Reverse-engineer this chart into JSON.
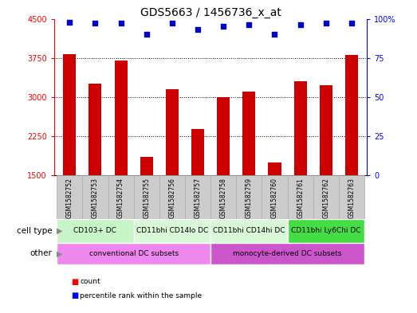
{
  "title": "GDS5663 / 1456736_x_at",
  "samples": [
    "GSM1582752",
    "GSM1582753",
    "GSM1582754",
    "GSM1582755",
    "GSM1582756",
    "GSM1582757",
    "GSM1582758",
    "GSM1582759",
    "GSM1582760",
    "GSM1582761",
    "GSM1582762",
    "GSM1582763"
  ],
  "counts": [
    3820,
    3250,
    3700,
    1850,
    3150,
    2380,
    3000,
    3100,
    1750,
    3300,
    3220,
    3800
  ],
  "percentiles": [
    98,
    97,
    97,
    90,
    97,
    93,
    95,
    96,
    90,
    96,
    97,
    97
  ],
  "ylim_left": [
    1500,
    4500
  ],
  "ylim_right": [
    0,
    100
  ],
  "yticks_left": [
    1500,
    2250,
    3000,
    3750,
    4500
  ],
  "yticks_right": [
    0,
    25,
    50,
    75,
    100
  ],
  "bar_color": "#cc0000",
  "dot_color": "#0000cc",
  "bar_width": 0.5,
  "cell_type_groups": [
    {
      "label": "CD103+ DC",
      "start": 0,
      "end": 3,
      "color": "#c8f5c8"
    },
    {
      "label": "CD11bhi CD14lo DC",
      "start": 3,
      "end": 6,
      "color": "#d8f8d8"
    },
    {
      "label": "CD11bhi CD14hi DC",
      "start": 6,
      "end": 9,
      "color": "#d8f8d8"
    },
    {
      "label": "CD11bhi Ly6Chi DC",
      "start": 9,
      "end": 12,
      "color": "#44dd44"
    }
  ],
  "other_groups": [
    {
      "label": "conventional DC subsets",
      "start": 0,
      "end": 6,
      "color": "#ee88ee"
    },
    {
      "label": "monocyte-derived DC subsets",
      "start": 6,
      "end": 12,
      "color": "#cc55cc"
    }
  ],
  "cell_type_label": "cell type",
  "other_label": "other",
  "legend_count_label": "count",
  "legend_percentile_label": "percentile rank within the sample",
  "title_fontsize": 10,
  "tick_fontsize": 7,
  "sample_fontsize": 5.5,
  "annot_fontsize": 6.5,
  "label_fontsize": 7.5,
  "gridline_ticks": [
    2250,
    3000,
    3750
  ],
  "sample_box_color": "#cccccc",
  "sample_box_edge": "#aaaaaa"
}
